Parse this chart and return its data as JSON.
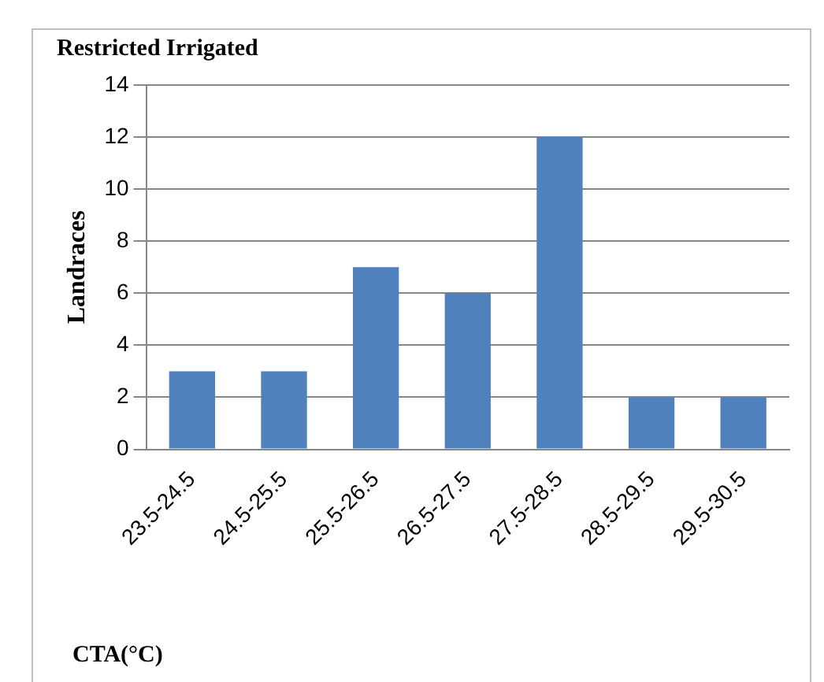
{
  "chart_data": {
    "type": "bar",
    "title": "Restricted Irrigated",
    "ylabel": "Landraces",
    "xlabel": "CTA(°C)",
    "categories": [
      "23.5-24.5",
      "24.5-25.5",
      "25.5-26.5",
      "26.5-27.5",
      "27.5-28.5",
      "28.5-29.5",
      "29.5-30.5"
    ],
    "values": [
      3,
      3,
      7,
      6,
      12,
      2,
      2
    ],
    "color": "#4f81bd",
    "ylim": [
      0,
      14
    ],
    "yticks": [
      0,
      2,
      4,
      6,
      8,
      10,
      12,
      14
    ],
    "grid": "y",
    "legend": false
  }
}
